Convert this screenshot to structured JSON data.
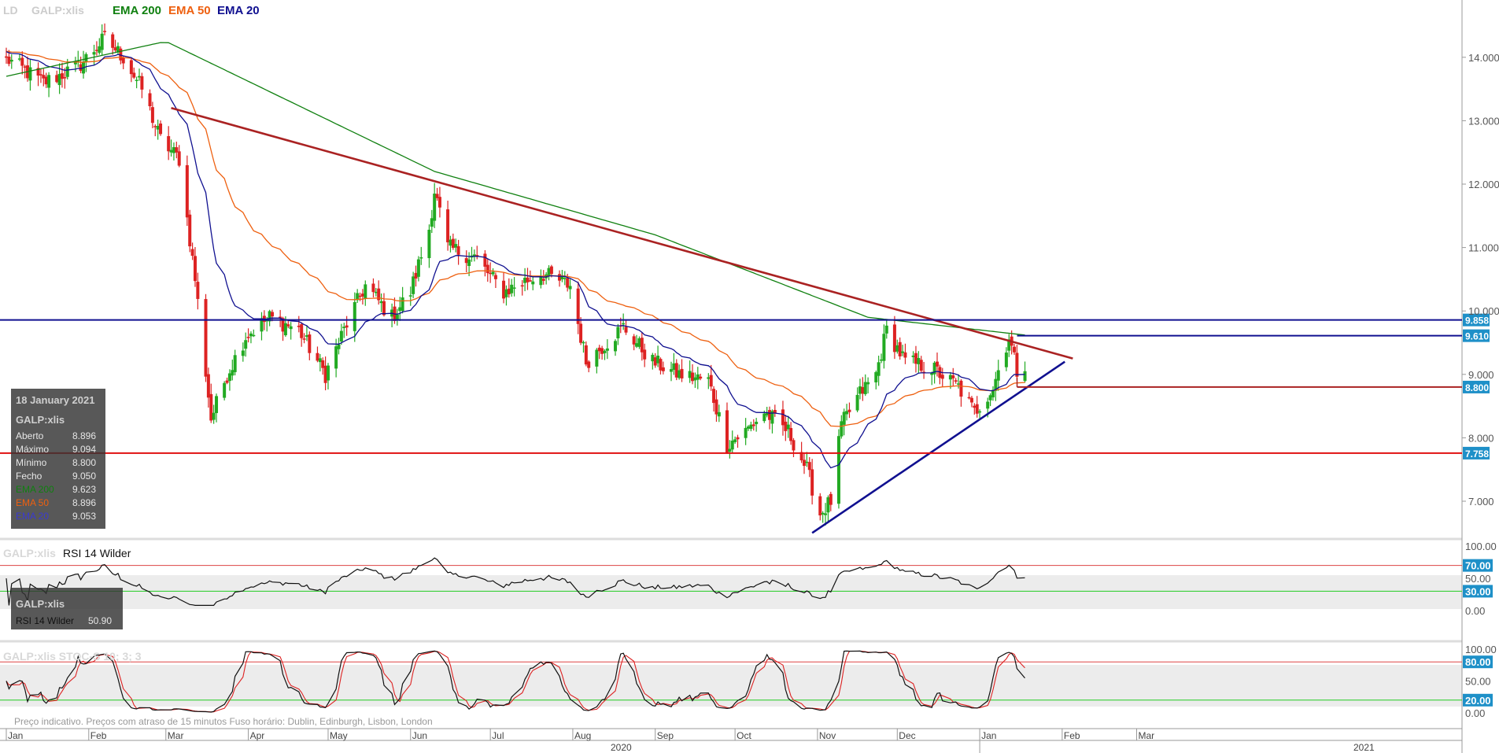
{
  "header": {
    "ticker_prefix": "LD",
    "ticker": "GALP:xlis",
    "legend": [
      {
        "label": "EMA 200",
        "color": "#108010"
      },
      {
        "label": "EMA 50",
        "color": "#ee6010"
      },
      {
        "label": "EMA 20",
        "color": "#101090"
      }
    ]
  },
  "tooltip": {
    "date": "18 January 2021",
    "ticker": "GALP:xlis",
    "rows": [
      {
        "label": "Aberto",
        "value": "8.896",
        "color": "#e6e6e6"
      },
      {
        "label": "Máximo",
        "value": "9.094",
        "color": "#e6e6e6"
      },
      {
        "label": "Mínimo",
        "value": "8.800",
        "color": "#e6e6e6"
      },
      {
        "label": "Fecho",
        "value": "9.050",
        "color": "#e6e6e6"
      },
      {
        "label": "EMA 200",
        "value": "9.623",
        "color": "#108010"
      },
      {
        "label": "EMA 50",
        "value": "8.896",
        "color": "#ee6010"
      },
      {
        "label": "EMA 20",
        "value": "9.053",
        "color": "#101090"
      }
    ]
  },
  "rsi_panel": {
    "title_ticker": "GALP:xlis",
    "title": "RSI 14 Wilder",
    "tip_ticker": "GALP:xlis",
    "tip_label": "RSI 14 Wilder",
    "tip_value": "50.90"
  },
  "stoch_panel": {
    "title": "GALP:xlis  STOC-S 10; 3; 3"
  },
  "footer_note": "Preço indicativo. Preços com atraso de 15 minutos    Fuso horário: Dublin, Edinburgh, Lisbon, London",
  "colors": {
    "up": "#22aa22",
    "down": "#dd2222",
    "ema200": "#108010",
    "ema50": "#ee6010",
    "ema20": "#101090",
    "trend_down": "#aa2222",
    "trend_up": "#101090",
    "support": "#e01010",
    "resistance": "#101090",
    "tag_bg": "#1e90c8"
  },
  "chart_data": [
    {
      "type": "line",
      "title": "GALP:xlis",
      "x_axis": {
        "month_labels": [
          "Jan",
          "Feb",
          "Mar",
          "Apr",
          "May",
          "Jun",
          "Jul",
          "Aug",
          "Sep",
          "Oct",
          "Nov",
          "Dec",
          "Jan",
          "Feb",
          "Mar"
        ],
        "year_labels": [
          "2020",
          "2021"
        ],
        "range": [
          "2020-01-01",
          "2021-03-31"
        ]
      },
      "y_axis": {
        "ticks": [
          "14.000",
          "13.000",
          "12.000",
          "11.000",
          "10.000",
          "9.000",
          "8.000",
          "7.000"
        ],
        "ylim": [
          6.4,
          14.9
        ]
      },
      "ohlc_anchors_close": [
        [
          "2020-01-02",
          13.95
        ],
        [
          "2020-01-15",
          13.6
        ],
        [
          "2020-01-28",
          13.85
        ],
        [
          "2020-02-07",
          14.3
        ],
        [
          "2020-02-14",
          14.0
        ],
        [
          "2020-02-21",
          13.5
        ],
        [
          "2020-02-28",
          12.7
        ],
        [
          "2020-03-06",
          12.4
        ],
        [
          "2020-03-12",
          10.5
        ],
        [
          "2020-03-18",
          8.3
        ],
        [
          "2020-03-24",
          9.0
        ],
        [
          "2020-03-31",
          9.6
        ],
        [
          "2020-04-09",
          9.9
        ],
        [
          "2020-04-20",
          9.7
        ],
        [
          "2020-04-30",
          9.0
        ],
        [
          "2020-05-08",
          9.8
        ],
        [
          "2020-05-15",
          10.4
        ],
        [
          "2020-05-25",
          9.9
        ],
        [
          "2020-06-01",
          10.3
        ],
        [
          "2020-06-08",
          11.3
        ],
        [
          "2020-06-10",
          11.9
        ],
        [
          "2020-06-15",
          11.0
        ],
        [
          "2020-06-25",
          10.85
        ],
        [
          "2020-07-06",
          10.3
        ],
        [
          "2020-07-20",
          10.6
        ],
        [
          "2020-07-31",
          10.4
        ],
        [
          "2020-08-06",
          9.2
        ],
        [
          "2020-08-20",
          9.75
        ],
        [
          "2020-08-31",
          9.2
        ],
        [
          "2020-09-10",
          9.0
        ],
        [
          "2020-09-21",
          8.9
        ],
        [
          "2020-09-28",
          7.9
        ],
        [
          "2020-10-05",
          8.1
        ],
        [
          "2020-10-12",
          8.4
        ],
        [
          "2020-10-21",
          8.1
        ],
        [
          "2020-10-28",
          7.5
        ],
        [
          "2020-11-02",
          6.8
        ],
        [
          "2020-11-06",
          7.0
        ],
        [
          "2020-11-10",
          8.2
        ],
        [
          "2020-11-17",
          8.7
        ],
        [
          "2020-11-23",
          9.0
        ],
        [
          "2020-11-27",
          9.7
        ],
        [
          "2020-12-04",
          9.2
        ],
        [
          "2020-12-14",
          9.1
        ],
        [
          "2020-12-24",
          8.8
        ],
        [
          "2020-12-30",
          8.4
        ],
        [
          "2021-01-06",
          8.8
        ],
        [
          "2021-01-12",
          9.6
        ],
        [
          "2021-01-15",
          9.05
        ],
        [
          "2021-01-18",
          9.05
        ]
      ],
      "ema200_anchors": [
        [
          "2020-01-01",
          13.7
        ],
        [
          "2020-03-01",
          14.25
        ],
        [
          "2020-06-10",
          12.2
        ],
        [
          "2020-09-01",
          11.2
        ],
        [
          "2020-11-20",
          9.9
        ],
        [
          "2021-01-18",
          9.62
        ]
      ],
      "horizontal_levels": [
        {
          "value": 9.858,
          "label": "9.858",
          "color": "#101090"
        },
        {
          "value": 9.61,
          "label": "9.610",
          "color": "#101090"
        },
        {
          "value": 8.8,
          "label": "8.800",
          "color": "#aa2222"
        },
        {
          "value": 7.758,
          "label": "7.758",
          "color": "#e01010"
        }
      ],
      "trendlines": [
        {
          "name": "down",
          "from": [
            "2020-03-03",
            13.2
          ],
          "to": [
            "2021-02-05",
            9.25
          ]
        },
        {
          "name": "up",
          "from": [
            "2020-10-30",
            6.5
          ],
          "to": [
            "2021-02-02",
            9.2
          ]
        }
      ]
    },
    {
      "type": "line",
      "title": "RSI 14 Wilder",
      "y_axis": {
        "ticks": [
          "100.00",
          "70.00",
          "50.00",
          "30.00",
          "0.00"
        ],
        "ylim": [
          0,
          100
        ]
      },
      "bands": [
        70,
        30
      ],
      "tags": [
        "70.00",
        "30.00"
      ]
    },
    {
      "type": "line",
      "title": "STOC-S 10; 3; 3",
      "y_axis": {
        "ticks": [
          "100.00",
          "80.00",
          "50.00",
          "20.00",
          "0.00"
        ],
        "ylim": [
          0,
          100
        ]
      },
      "bands": [
        80,
        20
      ],
      "tags": [
        "80.00",
        "20.00"
      ]
    }
  ]
}
